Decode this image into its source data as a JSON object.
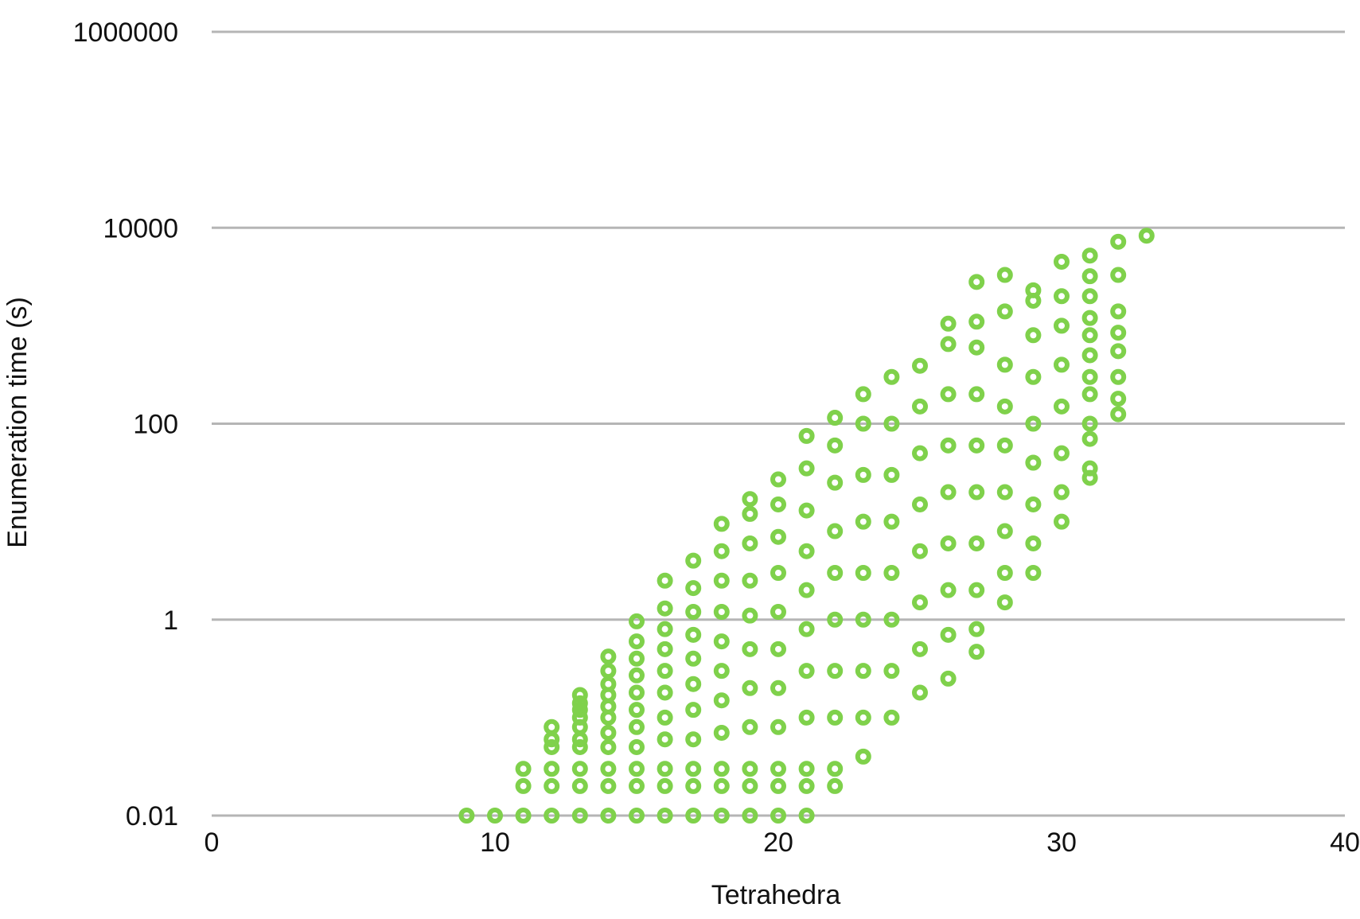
{
  "chart_data": {
    "type": "scatter",
    "xlabel": "Tetrahedra",
    "ylabel": "Enumeration time (s)",
    "xlim": [
      0,
      40
    ],
    "ylim": [
      0.01,
      1000000
    ],
    "yscale": "log",
    "grid": "horizontal",
    "x_ticks": [
      0,
      10,
      20,
      30,
      40
    ],
    "y_ticks": [
      0.01,
      1,
      100,
      10000,
      1000000
    ],
    "x_tick_labels": [
      "0",
      "10",
      "20",
      "30",
      "40"
    ],
    "y_tick_labels": [
      "0.01",
      "1",
      "100",
      "10000",
      "1000000"
    ],
    "point_color": "#7fd14b",
    "gridline_color": "#b5b5b5",
    "series": [
      {
        "points": [
          [
            9,
            0.01
          ],
          [
            10,
            0.01
          ],
          [
            11,
            0.01
          ],
          [
            11,
            0.02
          ],
          [
            11,
            0.03
          ],
          [
            12,
            0.01
          ],
          [
            12,
            0.02
          ],
          [
            12,
            0.03
          ],
          [
            12,
            0.05
          ],
          [
            12,
            0.06
          ],
          [
            12,
            0.08
          ],
          [
            13,
            0.01
          ],
          [
            13,
            0.02
          ],
          [
            13,
            0.03
          ],
          [
            13,
            0.05
          ],
          [
            13,
            0.06
          ],
          [
            13,
            0.08
          ],
          [
            13,
            0.1
          ],
          [
            13,
            0.12
          ],
          [
            13,
            0.14
          ],
          [
            13,
            0.17
          ],
          [
            14,
            0.01
          ],
          [
            14,
            0.02
          ],
          [
            14,
            0.03
          ],
          [
            14,
            0.05
          ],
          [
            14,
            0.07
          ],
          [
            14,
            0.1
          ],
          [
            14,
            0.13
          ],
          [
            14,
            0.17
          ],
          [
            14,
            0.22
          ],
          [
            14,
            0.3
          ],
          [
            14,
            0.42
          ],
          [
            15,
            0.01
          ],
          [
            15,
            0.02
          ],
          [
            15,
            0.03
          ],
          [
            15,
            0.05
          ],
          [
            15,
            0.08
          ],
          [
            15,
            0.12
          ],
          [
            15,
            0.18
          ],
          [
            15,
            0.27
          ],
          [
            15,
            0.4
          ],
          [
            15,
            0.6
          ],
          [
            15,
            0.96
          ],
          [
            16,
            0.01
          ],
          [
            16,
            0.02
          ],
          [
            16,
            0.03
          ],
          [
            16,
            0.06
          ],
          [
            16,
            0.1
          ],
          [
            16,
            0.18
          ],
          [
            16,
            0.3
          ],
          [
            16,
            0.5
          ],
          [
            16,
            0.8
          ],
          [
            16,
            1.3
          ],
          [
            16,
            2.5
          ],
          [
            17,
            0.01
          ],
          [
            17,
            0.02
          ],
          [
            17,
            0.03
          ],
          [
            17,
            0.06
          ],
          [
            17,
            0.12
          ],
          [
            17,
            0.22
          ],
          [
            17,
            0.4
          ],
          [
            17,
            0.7
          ],
          [
            17,
            1.2
          ],
          [
            17,
            2.1
          ],
          [
            17,
            4.0
          ],
          [
            18,
            0.01
          ],
          [
            18,
            0.02
          ],
          [
            18,
            0.03
          ],
          [
            18,
            0.07
          ],
          [
            18,
            0.15
          ],
          [
            18,
            0.3
          ],
          [
            18,
            0.6
          ],
          [
            18,
            1.2
          ],
          [
            18,
            2.5
          ],
          [
            18,
            5
          ],
          [
            18,
            9.5
          ],
          [
            19,
            0.01
          ],
          [
            19,
            0.02
          ],
          [
            19,
            0.03
          ],
          [
            19,
            0.08
          ],
          [
            19,
            0.2
          ],
          [
            19,
            0.5
          ],
          [
            19,
            1.1
          ],
          [
            19,
            2.5
          ],
          [
            19,
            6
          ],
          [
            19,
            12
          ],
          [
            19,
            17
          ],
          [
            20,
            0.01
          ],
          [
            20,
            0.02
          ],
          [
            20,
            0.03
          ],
          [
            20,
            0.08
          ],
          [
            20,
            0.2
          ],
          [
            20,
            0.5
          ],
          [
            20,
            1.2
          ],
          [
            20,
            3
          ],
          [
            20,
            7
          ],
          [
            20,
            15
          ],
          [
            20,
            27
          ],
          [
            21,
            0.01
          ],
          [
            21,
            0.02
          ],
          [
            21,
            0.03
          ],
          [
            21,
            0.1
          ],
          [
            21,
            0.3
          ],
          [
            21,
            0.8
          ],
          [
            21,
            2
          ],
          [
            21,
            5
          ],
          [
            21,
            13
          ],
          [
            21,
            35
          ],
          [
            21,
            75
          ],
          [
            22,
            0.02
          ],
          [
            22,
            0.03
          ],
          [
            22,
            0.1
          ],
          [
            22,
            0.3
          ],
          [
            22,
            1
          ],
          [
            22,
            3
          ],
          [
            22,
            8
          ],
          [
            22,
            25
          ],
          [
            22,
            60
          ],
          [
            22,
            115
          ],
          [
            23,
            0.04
          ],
          [
            23,
            0.1
          ],
          [
            23,
            0.3
          ],
          [
            23,
            1
          ],
          [
            23,
            3
          ],
          [
            23,
            10
          ],
          [
            23,
            30
          ],
          [
            23,
            100
          ],
          [
            23,
            200
          ],
          [
            24,
            0.1
          ],
          [
            24,
            0.3
          ],
          [
            24,
            1
          ],
          [
            24,
            3
          ],
          [
            24,
            10
          ],
          [
            24,
            30
          ],
          [
            24,
            100
          ],
          [
            24,
            300
          ],
          [
            25,
            0.18
          ],
          [
            25,
            0.5
          ],
          [
            25,
            1.5
          ],
          [
            25,
            5
          ],
          [
            25,
            15
          ],
          [
            25,
            50
          ],
          [
            25,
            150
          ],
          [
            25,
            390
          ],
          [
            26,
            0.25
          ],
          [
            26,
            0.7
          ],
          [
            26,
            2
          ],
          [
            26,
            6
          ],
          [
            26,
            20
          ],
          [
            26,
            60
          ],
          [
            26,
            200
          ],
          [
            26,
            650
          ],
          [
            26,
            1050
          ],
          [
            27,
            0.47
          ],
          [
            27,
            0.8
          ],
          [
            27,
            2
          ],
          [
            27,
            6
          ],
          [
            27,
            20
          ],
          [
            27,
            60
          ],
          [
            27,
            200
          ],
          [
            27,
            600
          ],
          [
            27,
            1100
          ],
          [
            27,
            2800
          ],
          [
            28,
            1.5
          ],
          [
            28,
            3
          ],
          [
            28,
            8
          ],
          [
            28,
            20
          ],
          [
            28,
            60
          ],
          [
            28,
            150
          ],
          [
            28,
            400
          ],
          [
            28,
            1400
          ],
          [
            28,
            3300
          ],
          [
            29,
            3
          ],
          [
            29,
            6
          ],
          [
            29,
            15
          ],
          [
            29,
            40
          ],
          [
            29,
            100
          ],
          [
            29,
            300
          ],
          [
            29,
            800
          ],
          [
            29,
            1800
          ],
          [
            29,
            2300
          ],
          [
            30,
            10
          ],
          [
            30,
            20
          ],
          [
            30,
            50
          ],
          [
            30,
            150
          ],
          [
            30,
            400
          ],
          [
            30,
            1000
          ],
          [
            30,
            2000
          ],
          [
            30,
            4500
          ],
          [
            31,
            28
          ],
          [
            31,
            35
          ],
          [
            31,
            70
          ],
          [
            31,
            100
          ],
          [
            31,
            200
          ],
          [
            31,
            300
          ],
          [
            31,
            500
          ],
          [
            31,
            800
          ],
          [
            31,
            1200
          ],
          [
            31,
            2000
          ],
          [
            31,
            3200
          ],
          [
            31,
            5200
          ],
          [
            32,
            125
          ],
          [
            32,
            180
          ],
          [
            32,
            300
          ],
          [
            32,
            550
          ],
          [
            32,
            850
          ],
          [
            32,
            1400
          ],
          [
            32,
            3300
          ],
          [
            32,
            7200
          ],
          [
            33,
            8300
          ]
        ]
      }
    ]
  }
}
